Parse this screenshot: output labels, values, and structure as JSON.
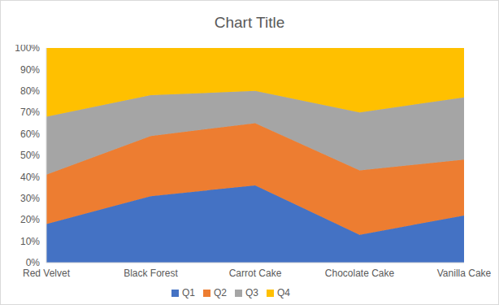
{
  "chart_data": {
    "type": "area",
    "title": "Chart Title",
    "stacked": true,
    "grid": false,
    "legend": "bottom",
    "categories": [
      "Red Velvet",
      "Black Forest",
      "Carrot Cake",
      "Chocolate Cake",
      "Vanilla Cake"
    ],
    "ylim": [
      0,
      100
    ],
    "yticks": [
      {
        "value": 0,
        "label": "0%"
      },
      {
        "value": 10,
        "label": "10%"
      },
      {
        "value": 20,
        "label": "20%"
      },
      {
        "value": 30,
        "label": "30%"
      },
      {
        "value": 40,
        "label": "40%"
      },
      {
        "value": 50,
        "label": "50%"
      },
      {
        "value": 60,
        "label": "60%"
      },
      {
        "value": 70,
        "label": "70%"
      },
      {
        "value": 80,
        "label": "80%"
      },
      {
        "value": 90,
        "label": "90%"
      },
      {
        "value": 100,
        "label": "100%"
      }
    ],
    "series": [
      {
        "name": "Q1",
        "color": "#4472c4",
        "values": [
          18,
          31,
          36,
          13,
          22
        ]
      },
      {
        "name": "Q2",
        "color": "#ed7d31",
        "values": [
          23,
          28,
          29,
          30,
          26
        ]
      },
      {
        "name": "Q3",
        "color": "#a5a5a5",
        "values": [
          27,
          19,
          15,
          27,
          29
        ]
      },
      {
        "name": "Q4",
        "color": "#ffc000",
        "values": [
          32,
          22,
          20,
          30,
          23
        ]
      }
    ]
  }
}
